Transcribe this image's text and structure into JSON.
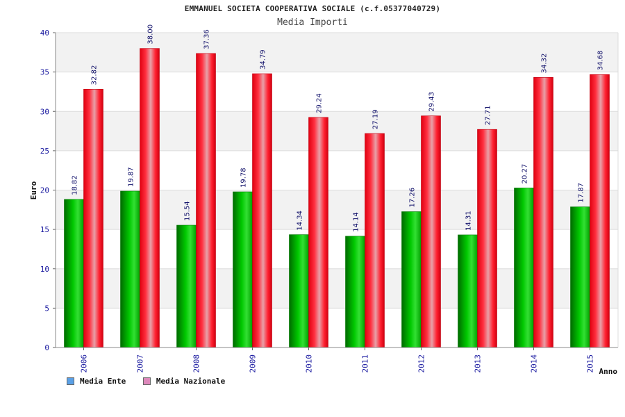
{
  "chart_data": {
    "type": "bar",
    "title": "EMMANUEL SOCIETA COOPERATIVA SOCIALE (c.f.05377040729)",
    "subtitle": "Media Importi",
    "xlabel": "Anno",
    "ylabel": "Euro",
    "ylim": [
      0,
      40
    ],
    "yticks": [
      "0",
      "5",
      "10",
      "15",
      "20",
      "25",
      "30",
      "35",
      "40"
    ],
    "categories": [
      "2006",
      "2007",
      "2008",
      "2009",
      "2010",
      "2011",
      "2012",
      "2013",
      "2014",
      "2015"
    ],
    "series": [
      {
        "name": "Media Ente",
        "values": [
          18.82,
          19.87,
          15.54,
          19.78,
          14.34,
          14.14,
          17.26,
          14.31,
          20.27,
          17.87
        ],
        "labels": [
          "18.82",
          "19.87",
          "15.54",
          "19.78",
          "14.34",
          "14.14",
          "17.26",
          "14.31",
          "20.27",
          "17.87"
        ],
        "color": "#00b000",
        "legend_color": "#5aa0e6"
      },
      {
        "name": "Media Nazionale",
        "values": [
          32.82,
          38.0,
          37.36,
          34.79,
          29.24,
          27.19,
          29.43,
          27.71,
          34.32,
          34.68
        ],
        "labels": [
          "32.82",
          "38.00",
          "37.36",
          "34.79",
          "29.24",
          "27.19",
          "29.43",
          "27.71",
          "34.32",
          "34.68"
        ],
        "color": "#ee1122",
        "legend_color": "#dd88bb"
      }
    ],
    "legend_position": "bottom-left",
    "grid": true
  }
}
